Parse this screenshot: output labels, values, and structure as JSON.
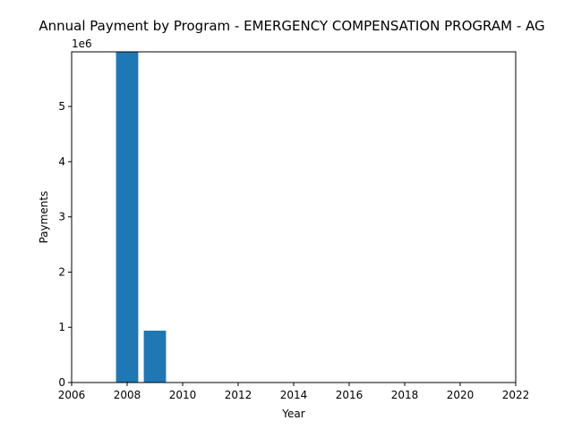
{
  "chart_data": {
    "type": "bar",
    "title": "Annual Payment by Program - EMERGENCY COMPENSATION PROGRAM - AG",
    "xlabel": "Year",
    "ylabel": "Payments",
    "y_offset_label": "1e6",
    "x": [
      2008,
      2009
    ],
    "values": [
      5990000,
      940000
    ],
    "bar_width_years": 0.8,
    "xlim": [
      2006,
      2022
    ],
    "ylim": [
      0,
      5990000
    ],
    "xticks": [
      2006,
      2008,
      2010,
      2012,
      2014,
      2016,
      2018,
      2020,
      2022
    ],
    "yticks": [
      0,
      1,
      2,
      3,
      4,
      5
    ],
    "y_tick_scale": 1000000,
    "bar_color": "#1f77b4",
    "grid": false,
    "legend": false
  }
}
